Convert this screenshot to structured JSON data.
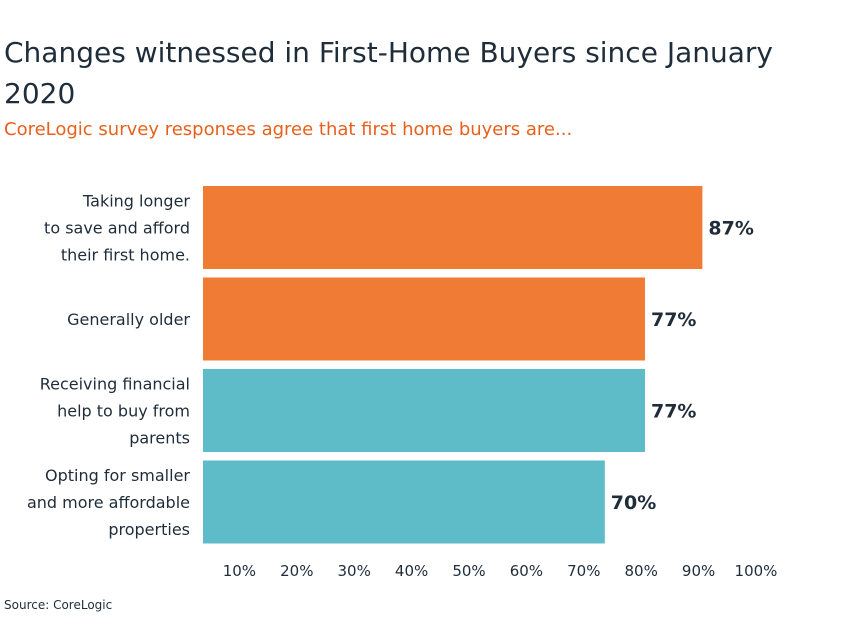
{
  "title": "Changes witnessed in First-Home Buyers since January 2020",
  "subtitle": "CoreLogic survey responses agree that first home buyers are...",
  "source": "Source: CoreLogic",
  "chart_data": {
    "type": "bar",
    "orientation": "horizontal",
    "categories": [
      "Taking longer to save and afford their first home.",
      "Generally older",
      "Receiving financial help to buy from parents",
      "Opting for smaller and more affordable properties"
    ],
    "category_lines": [
      [
        "Taking longer",
        "to save and afford",
        "their first home."
      ],
      [
        "Generally older"
      ],
      [
        "Receiving financial",
        "help to buy from",
        "parents"
      ],
      [
        "Opting for smaller",
        "and more affordable",
        "properties"
      ]
    ],
    "values": [
      87,
      77,
      77,
      70
    ],
    "data_labels": [
      "87%",
      "77%",
      "77%",
      "70%"
    ],
    "bar_colors": [
      "#ef7b35",
      "#ef7b35",
      "#5dbcc8",
      "#5dbcc8"
    ],
    "xticks": [
      "10%",
      "20%",
      "30%",
      "40%",
      "50%",
      "60%",
      "70%",
      "80%",
      "90%",
      "100%"
    ],
    "xlim": [
      0,
      100
    ],
    "grid": false,
    "legend": "none"
  }
}
